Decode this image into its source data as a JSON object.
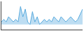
{
  "chart_data": {
    "type": "area",
    "x": [
      0,
      1,
      2,
      3,
      4,
      5,
      6,
      7,
      8,
      9,
      10,
      11,
      12,
      13,
      14,
      15,
      16,
      17,
      18,
      19,
      20,
      21,
      22,
      23,
      24,
      25,
      26,
      27,
      28,
      29,
      30,
      31,
      32,
      33,
      34
    ],
    "values": [
      4,
      5,
      4,
      6,
      5,
      4,
      5,
      4,
      10,
      6,
      9,
      4,
      3,
      8,
      4,
      6,
      3,
      4,
      5,
      4,
      5,
      4,
      6,
      5,
      4,
      6,
      5,
      4,
      5,
      6,
      5,
      4,
      5,
      7,
      9
    ],
    "baseline": 3,
    "color": "#5aabde",
    "xlim": [
      0,
      34
    ],
    "ylim": [
      1,
      12
    ],
    "tick_labels": false,
    "grid": false
  }
}
